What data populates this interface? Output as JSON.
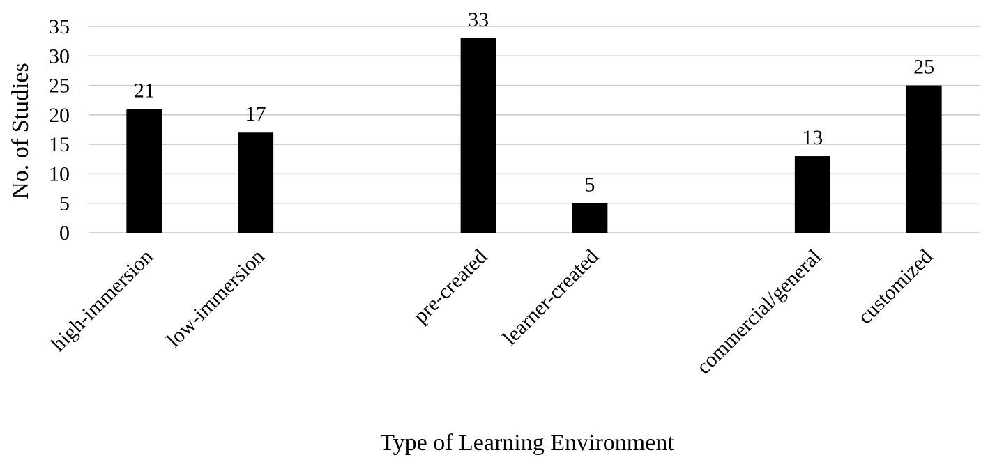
{
  "chart_data": {
    "type": "bar",
    "categories": [
      "high-immersion",
      "low-immersion",
      "",
      "pre-created",
      "learner-created",
      "",
      "commercial/general",
      "customized"
    ],
    "values": [
      21,
      17,
      null,
      33,
      5,
      null,
      13,
      25
    ],
    "data_labels": [
      "21",
      "17",
      "",
      "33",
      "5",
      "",
      "13",
      "25"
    ],
    "xlabel": "Type of Learning Environment",
    "ylabel": "No. of Studies",
    "ylim": [
      0,
      35
    ],
    "yticks": [
      0,
      5,
      10,
      15,
      20,
      25,
      30,
      35
    ],
    "grid": true,
    "bar_color": "#000000",
    "grid_color": "#c8c8c8"
  }
}
